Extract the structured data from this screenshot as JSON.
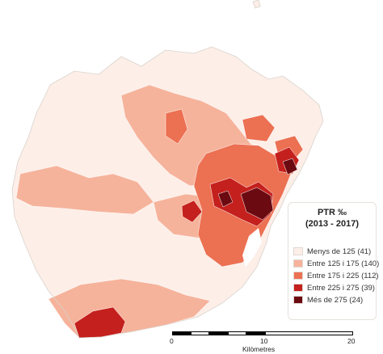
{
  "legend": {
    "title_line1": "PTR ‰",
    "title_line2": "(2013 - 2017)",
    "items": [
      {
        "label": "Menys de 125 (41)",
        "color": "#fdeee8"
      },
      {
        "label": "Entre 125 i 175 (140)",
        "color": "#f6b39b"
      },
      {
        "label": "Entre 175 i 225 (112)",
        "color": "#ec7052"
      },
      {
        "label": "Entre 225 i 275 (39)",
        "color": "#c4201d"
      },
      {
        "label": "Més de 275 (24)",
        "color": "#6b0a11"
      }
    ]
  },
  "scale": {
    "ticks": [
      "0",
      "10",
      "20"
    ],
    "unit": "Kilòmetres"
  },
  "colors": {
    "outline": "#d9d2cc",
    "background": "#ffffff"
  }
}
